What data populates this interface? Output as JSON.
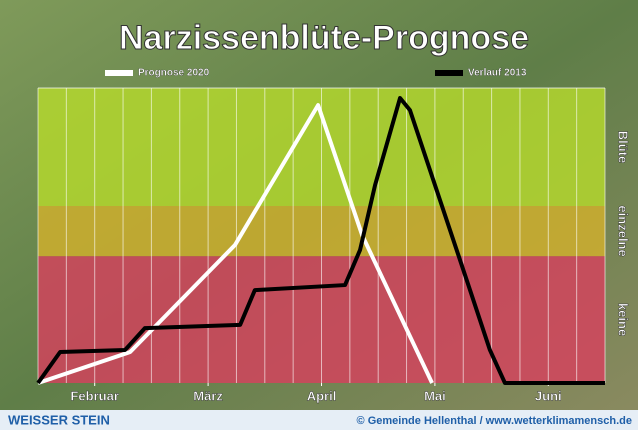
{
  "chart_data": {
    "type": "line",
    "title": "Narzissenblüte-Prognose",
    "xlim": [
      0,
      20
    ],
    "ylim": [
      0,
      100
    ],
    "xticks": [
      {
        "value": 2,
        "label": "Februar"
      },
      {
        "value": 6,
        "label": "März"
      },
      {
        "value": 10,
        "label": "April"
      },
      {
        "value": 14,
        "label": "Mai"
      },
      {
        "value": 18,
        "label": "Juni"
      }
    ],
    "bands": [
      {
        "label": "keine",
        "from": 0,
        "to": 43,
        "color": "#d8405e"
      },
      {
        "label": "einzelne",
        "from": 43,
        "to": 60,
        "color": "#d4b22c"
      },
      {
        "label": "Blüte",
        "from": 60,
        "to": 100,
        "color": "#b8dc2c"
      }
    ],
    "series": [
      {
        "name": "Prognose 2020",
        "color": "#ffffff",
        "x": [
          0,
          3.25,
          6.95,
          9.88,
          11.43,
          13.9
        ],
        "values": [
          0,
          10.5,
          46.8,
          94.2,
          50.2,
          0
        ]
      },
      {
        "name": "Verlauf 2013",
        "color": "#000000",
        "x": [
          0,
          0.78,
          3.07,
          3.77,
          7.13,
          7.65,
          10.83,
          11.36,
          11.89,
          12.77,
          13.12,
          14.18,
          15.24,
          15.94,
          16.47,
          20
        ],
        "values": [
          0,
          10.5,
          11.2,
          18.6,
          19.7,
          31.5,
          33.2,
          45.1,
          67.1,
          96.6,
          92.5,
          62,
          31.5,
          11.2,
          0,
          0
        ]
      }
    ]
  },
  "footer": {
    "left": "WEISSER STEIN",
    "right": "© Gemeinde Hellenthal / www.wetterklimamensch.de"
  }
}
